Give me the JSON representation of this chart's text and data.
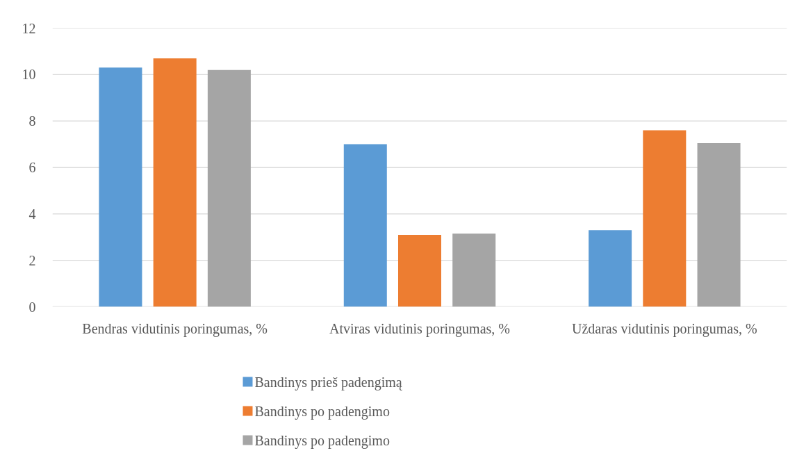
{
  "chart_data": {
    "type": "bar",
    "categories": [
      "Bendras vidutinis poringumas, %",
      "Atviras vidutinis poringumas, %",
      "Uždaras vidutinis poringumas, %"
    ],
    "series": [
      {
        "name": "Bandinys prieš padengimą",
        "color": "#5b9bd5",
        "values": [
          10.3,
          7.0,
          3.3
        ]
      },
      {
        "name": "Bandinys po padengimo",
        "color": "#ed7d31",
        "values": [
          10.7,
          3.1,
          7.6
        ]
      },
      {
        "name": "Bandinys po padengimo",
        "color": "#a5a5a5",
        "values": [
          10.2,
          3.15,
          7.05
        ]
      }
    ],
    "ylim": [
      0,
      12
    ],
    "yticks": [
      0,
      2,
      4,
      6,
      8,
      10,
      12
    ],
    "grid": "y",
    "legend": "bottom"
  }
}
